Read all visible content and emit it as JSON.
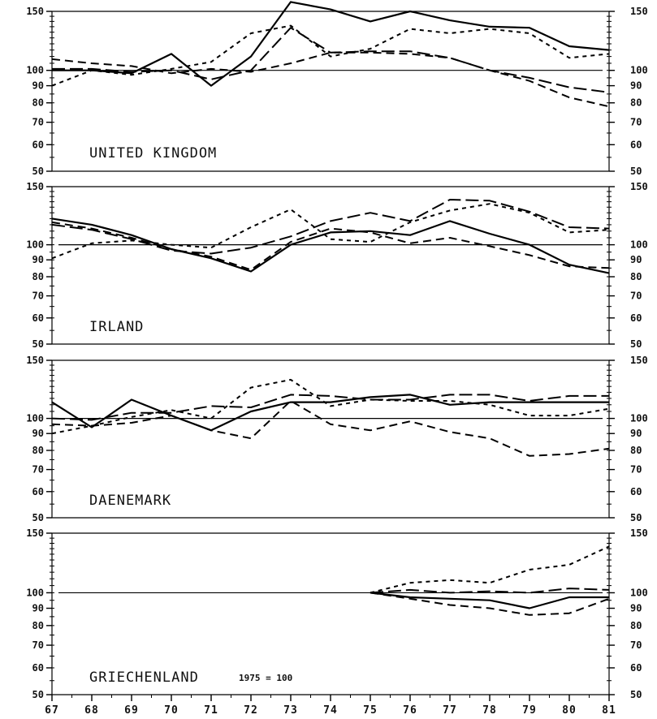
{
  "chart_data": [
    {
      "type": "line",
      "panel_label": "UNITED KINGDOM",
      "x": [
        67,
        68,
        69,
        70,
        71,
        72,
        73,
        74,
        75,
        76,
        77,
        78,
        79,
        80,
        81
      ],
      "ylim": [
        50,
        150
      ],
      "y_ticks": [
        50,
        60,
        70,
        80,
        90,
        100,
        150
      ],
      "reference_line": 100,
      "series": [
        {
          "dash": "solid",
          "values": [
            100,
            100,
            98,
            112,
            90,
            110,
            160,
            152,
            140,
            150,
            141,
            135,
            134,
            118,
            115
          ]
        },
        {
          "dash": "long",
          "values": [
            101,
            101,
            99,
            100,
            94,
            100,
            134,
            113,
            114,
            114,
            109,
            100,
            95,
            89,
            86
          ]
        },
        {
          "dash": "medium",
          "values": [
            108,
            105,
            103,
            98,
            101,
            99,
            105,
            113,
            113,
            112,
            109,
            100,
            93,
            83,
            78
          ]
        },
        {
          "dash": "short",
          "values": [
            90,
            100,
            97,
            101,
            106,
            129,
            136,
            110,
            116,
            133,
            129,
            133,
            129,
            109,
            112
          ]
        }
      ]
    },
    {
      "type": "line",
      "panel_label": "IRLAND",
      "x": [
        67,
        68,
        69,
        70,
        71,
        72,
        73,
        74,
        75,
        76,
        77,
        78,
        79,
        80,
        81
      ],
      "ylim": [
        50,
        150
      ],
      "y_ticks": [
        50,
        60,
        70,
        80,
        90,
        100,
        150
      ],
      "reference_line": 100,
      "series": [
        {
          "dash": "solid",
          "values": [
            120,
            115,
            107,
            97,
            91,
            83,
            100,
            109,
            110,
            107,
            118,
            108,
            100,
            87,
            82
          ]
        },
        {
          "dash": "long",
          "values": [
            115,
            111,
            104,
            96,
            94,
            98,
            106,
            118,
            125,
            118,
            137,
            136,
            126,
            113,
            112
          ]
        },
        {
          "dash": "medium",
          "values": [
            117,
            112,
            105,
            97,
            92,
            84,
            102,
            112,
            109,
            101,
            105,
            99,
            93,
            86,
            85
          ]
        },
        {
          "dash": "short",
          "values": [
            91,
            101,
            103,
            100,
            98,
            113,
            128,
            104,
            102,
            117,
            127,
            133,
            125,
            109,
            111
          ]
        }
      ]
    },
    {
      "type": "line",
      "panel_label": "DAENEMARK",
      "x": [
        67,
        68,
        69,
        70,
        71,
        72,
        73,
        74,
        75,
        76,
        77,
        78,
        79,
        80,
        81
      ],
      "ylim": [
        50,
        150
      ],
      "y_ticks": [
        50,
        60,
        70,
        80,
        90,
        100,
        150
      ],
      "reference_line": 100,
      "series": [
        {
          "dash": "solid",
          "values": [
            112,
            94,
            114,
            102,
            92,
            105,
            112,
            112,
            116,
            118,
            110,
            112,
            112,
            112,
            112
          ]
        },
        {
          "dash": "long",
          "values": [
            100,
            99,
            104,
            104,
            109,
            108,
            118,
            117,
            114,
            114,
            118,
            118,
            113,
            117,
            117
          ]
        },
        {
          "dash": "medium",
          "values": [
            96,
            95,
            97,
            102,
            92,
            87,
            113,
            96,
            92,
            98,
            91,
            87,
            77,
            78,
            81
          ]
        },
        {
          "dash": "short",
          "values": [
            90,
            95,
            101,
            106,
            100,
            124,
            131,
            109,
            114,
            113,
            113,
            110,
            102,
            102,
            107
          ]
        }
      ]
    },
    {
      "type": "line",
      "panel_label": "GRIECHENLAND",
      "note": "1975 = 100",
      "x": [
        67,
        68,
        69,
        70,
        71,
        72,
        73,
        74,
        75,
        76,
        77,
        78,
        79,
        80,
        81
      ],
      "ylim": [
        50,
        150
      ],
      "y_ticks": [
        50,
        60,
        70,
        80,
        90,
        100,
        150
      ],
      "reference_line": 100,
      "series": [
        {
          "dash": "solid",
          "x": [
            75,
            76,
            77,
            78,
            79,
            80,
            81
          ],
          "values": [
            100,
            97,
            96,
            95,
            90,
            97,
            97
          ]
        },
        {
          "dash": "long",
          "x": [
            75,
            76,
            77,
            78,
            79,
            80,
            81
          ],
          "values": [
            100,
            102,
            100,
            101,
            100,
            103,
            102
          ]
        },
        {
          "dash": "medium",
          "x": [
            75,
            76,
            77,
            78,
            79,
            80,
            81
          ],
          "values": [
            100,
            96,
            92,
            90,
            86,
            87,
            96
          ]
        },
        {
          "dash": "short",
          "x": [
            75,
            76,
            77,
            78,
            79,
            80,
            81
          ],
          "values": [
            100,
            107,
            109,
            107,
            117,
            121,
            137
          ]
        }
      ]
    }
  ]
}
